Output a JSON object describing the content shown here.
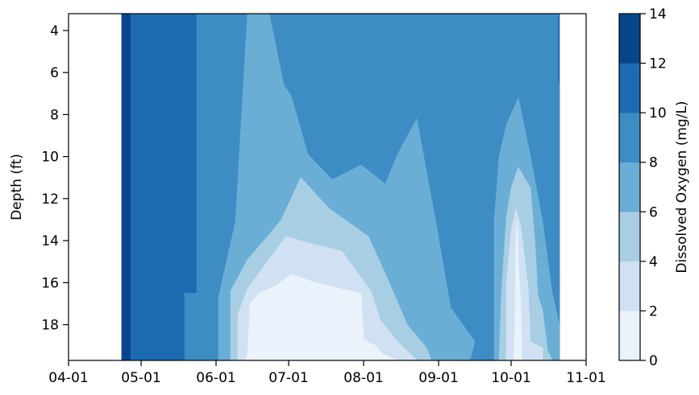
{
  "chart_data": {
    "type": "heatmap",
    "subtype": "filled-contour",
    "title": "",
    "xlabel": "",
    "ylabel": "Depth (ft)",
    "y_axis_inverted": true,
    "xlim": [
      "2024-04-01",
      "2024-11-01"
    ],
    "ylim": [
      3.2,
      19.7
    ],
    "x_ticks": [
      "04-01",
      "05-01",
      "06-01",
      "07-01",
      "08-01",
      "09-01",
      "10-01",
      "11-01"
    ],
    "y_ticks": [
      4,
      6,
      8,
      10,
      12,
      14,
      16,
      18
    ],
    "colorbar": {
      "label": "Dissolved Oxygen (mg/L)",
      "ticks": [
        0,
        2,
        4,
        6,
        8,
        10,
        12,
        14
      ],
      "levels": [
        0,
        2,
        4,
        6,
        8,
        10,
        12,
        14
      ],
      "colors": [
        "#eaf2fb",
        "#cfe1f2",
        "#a8cee4",
        "#6aaed6",
        "#3d8dc4",
        "#1c6ab0",
        "#08468b"
      ]
    },
    "data_extent": {
      "x_start": "2024-04-23",
      "x_end": "2024-10-21",
      "y_min": 3.2,
      "y_max": 19.7
    },
    "bands": [
      {
        "level_min": 10,
        "level_max": 12,
        "note": "early season full column (late Apr to May)"
      },
      {
        "level_min": 12,
        "level_max": 14,
        "note": "first sampling week, full column"
      },
      {
        "level_min": 8,
        "level_max": 10,
        "note": "upper water column Jun to Oct"
      },
      {
        "level_min": 6,
        "level_max": 8,
        "note": "mid depths Jun to Sep"
      },
      {
        "level_min": 4,
        "level_max": 6,
        "note": "lower column Jun to Aug"
      },
      {
        "level_min": 2,
        "level_max": 4,
        "note": "near-bottom Jun to Aug"
      },
      {
        "level_min": 0,
        "level_max": 2,
        "note": "bottom anoxic layer Jul to Aug"
      }
    ]
  }
}
